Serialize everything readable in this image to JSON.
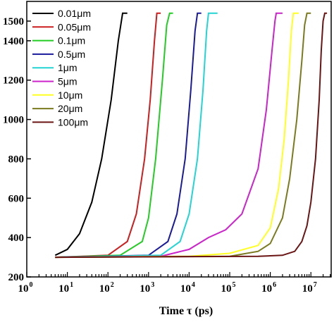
{
  "chart_data": {
    "type": "line",
    "title": "",
    "xlabel": "Time τ (ps)",
    "ylabel": "",
    "x_scale": "log",
    "xlim": [
      1,
      31622776
    ],
    "ylim": [
      200,
      1600
    ],
    "x_ticks": [
      {
        "base": "10",
        "exp": "0"
      },
      {
        "base": "10",
        "exp": "1"
      },
      {
        "base": "10",
        "exp": "2"
      },
      {
        "base": "10",
        "exp": "3"
      },
      {
        "base": "10",
        "exp": "4"
      },
      {
        "base": "10",
        "exp": "5"
      },
      {
        "base": "10",
        "exp": "6"
      },
      {
        "base": "10",
        "exp": "7"
      }
    ],
    "y_tick_labels": [
      "200",
      "400",
      "600",
      "800",
      "1000",
      "1200",
      "1400",
      "1500"
    ],
    "y_tick_values": [
      200,
      400,
      600,
      800,
      1000,
      1200,
      1400,
      1500
    ],
    "grid": false,
    "legend_position": "top-left",
    "series": [
      {
        "name": "0.01μm",
        "color": "#000000",
        "x": [
          5,
          10,
          20,
          40,
          70,
          120,
          180,
          230,
          260,
          300
        ],
        "y": [
          310,
          340,
          420,
          580,
          800,
          1100,
          1400,
          1540,
          1540,
          1540
        ]
      },
      {
        "name": "0.05μm",
        "color": "#cc1e1e",
        "x": [
          5,
          100,
          300,
          500,
          800,
          1100,
          1400,
          1600,
          2000
        ],
        "y": [
          300,
          310,
          380,
          520,
          800,
          1100,
          1400,
          1540,
          1540
        ]
      },
      {
        "name": "0.1μm",
        "color": "#22cc22",
        "x": [
          5,
          200,
          700,
          1000,
          1500,
          2200,
          2800,
          3300,
          4000
        ],
        "y": [
          300,
          310,
          380,
          500,
          800,
          1200,
          1480,
          1540,
          1540
        ]
      },
      {
        "name": "0.5μm",
        "color": "#1a1a9c",
        "x": [
          5,
          1000,
          3000,
          5000,
          8000,
          11000,
          14000,
          16000,
          20000
        ],
        "y": [
          300,
          310,
          380,
          520,
          800,
          1150,
          1450,
          1540,
          1540
        ]
      },
      {
        "name": "1μm",
        "color": "#22d4d4",
        "x": [
          5,
          2000,
          6000,
          10000,
          16000,
          22000,
          27000,
          30000,
          50000
        ],
        "y": [
          300,
          310,
          380,
          520,
          800,
          1150,
          1450,
          1540,
          1540
        ]
      },
      {
        "name": "5μm",
        "color": "#cc22cc",
        "x": [
          5,
          2000,
          10000,
          30000,
          80000,
          200000,
          500000,
          800000,
          1100000,
          1300000,
          1400000,
          2000000
        ],
        "y": [
          300,
          305,
          340,
          400,
          440,
          520,
          750,
          1050,
          1350,
          1500,
          1540,
          1540
        ]
      },
      {
        "name": "10μm",
        "color": "#ffff22",
        "x": [
          5,
          10000,
          100000,
          500000,
          1000000,
          1600000,
          2200000,
          2800000,
          3300000,
          3700000,
          5000000
        ],
        "y": [
          300,
          305,
          320,
          360,
          450,
          650,
          900,
          1200,
          1450,
          1540,
          1540
        ]
      },
      {
        "name": "20μm",
        "color": "#7a7a1e",
        "x": [
          5,
          100000,
          500000,
          1000000,
          2000000,
          3000000,
          4500000,
          6000000,
          7000000,
          8000000,
          10000000
        ],
        "y": [
          300,
          305,
          330,
          370,
          500,
          700,
          1000,
          1300,
          1480,
          1540,
          1540
        ]
      },
      {
        "name": "100μm",
        "color": "#6b1414",
        "x": [
          5,
          500000,
          2000000,
          4000000,
          6000000,
          8000000,
          10000000,
          13000000,
          16000000,
          18000000,
          20000000,
          22000000,
          25000000
        ],
        "y": [
          300,
          305,
          310,
          330,
          380,
          460,
          580,
          800,
          1100,
          1350,
          1500,
          1540,
          1540
        ]
      }
    ]
  }
}
